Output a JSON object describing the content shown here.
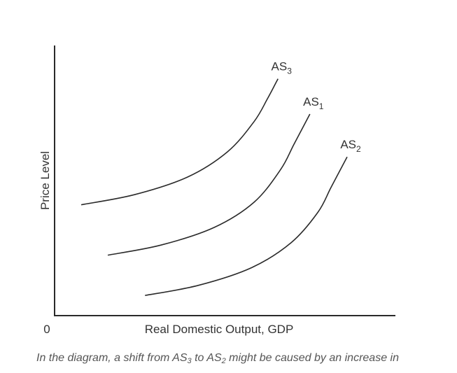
{
  "chart_data": {
    "type": "line",
    "xlabel": "Real Domestic Output, GDP",
    "ylabel": "Price Level",
    "origin_label": "0",
    "grid": false,
    "series": [
      {
        "name": "AS",
        "subscript": "3",
        "x": [
          1.0,
          3.0,
          5.0,
          6.5,
          7.5,
          8.0,
          8.4
        ],
        "y": [
          4.4,
          4.8,
          5.5,
          6.5,
          7.7,
          8.6,
          9.4
        ]
      },
      {
        "name": "AS",
        "subscript": "1",
        "x": [
          2.0,
          4.0,
          6.0,
          7.5,
          8.5,
          9.0,
          9.6
        ],
        "y": [
          2.4,
          2.8,
          3.5,
          4.5,
          5.8,
          6.8,
          8.0
        ]
      },
      {
        "name": "AS",
        "subscript": "2",
        "x": [
          3.4,
          5.4,
          7.4,
          8.9,
          9.9,
          10.4,
          11.0
        ],
        "y": [
          0.8,
          1.2,
          1.9,
          2.9,
          4.1,
          5.1,
          6.3
        ]
      }
    ],
    "colors": {
      "curve": "#2a2a2a",
      "axis": "#2a2a2a",
      "text": "#333333",
      "caption": "#555555"
    }
  },
  "caption": {
    "before": "In the diagram, a shift from AS",
    "sub1": "3",
    "middle": " to AS",
    "sub2": "2",
    "after": " might be caused by an increase in"
  }
}
